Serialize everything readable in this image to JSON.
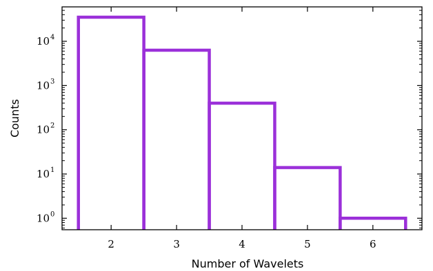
{
  "chart_data": {
    "type": "bar",
    "style": "step-histogram-outline",
    "categories": [
      "2",
      "3",
      "4",
      "5",
      "6"
    ],
    "x": [
      2,
      3,
      4,
      5,
      6
    ],
    "values": [
      35000,
      6300,
      400,
      14,
      1
    ],
    "xlabel": "Number of Wavelets",
    "ylabel": "Counts",
    "xlim": [
      1.25,
      6.75
    ],
    "ylim": [
      0.55,
      60000
    ],
    "yscale": "log",
    "yticks": [
      {
        "value": 1,
        "base": "10",
        "exp": "0"
      },
      {
        "value": 10,
        "base": "10",
        "exp": "1"
      },
      {
        "value": 100,
        "base": "10",
        "exp": "2"
      },
      {
        "value": 1000,
        "base": "10",
        "exp": "3"
      },
      {
        "value": 10000,
        "base": "10",
        "exp": "4"
      }
    ],
    "grid": false,
    "legend": "none",
    "color": "#9b30d9"
  }
}
